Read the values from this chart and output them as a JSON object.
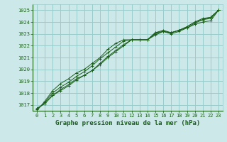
{
  "title": "Graphe pression niveau de la mer (hPa)",
  "background_color": "#cce8e8",
  "grid_color": "#99cccc",
  "line_color": "#1a5e1a",
  "axis_label_color": "#1a5e1a",
  "tick_color": "#1a5e1a",
  "ylim": [
    1016.5,
    1025.5
  ],
  "xlim": [
    -0.5,
    23.5
  ],
  "yticks": [
    1017,
    1018,
    1019,
    1020,
    1021,
    1022,
    1023,
    1024,
    1025
  ],
  "xticks": [
    0,
    1,
    2,
    3,
    4,
    5,
    6,
    7,
    8,
    9,
    10,
    11,
    12,
    13,
    14,
    15,
    16,
    17,
    18,
    19,
    20,
    21,
    22,
    23
  ],
  "series": [
    [
      1016.7,
      1017.1,
      1017.8,
      1018.2,
      1018.6,
      1019.1,
      1019.5,
      1019.9,
      1020.4,
      1021.0,
      1021.5,
      1022.0,
      1022.5,
      1022.5,
      1022.5,
      1023.0,
      1023.2,
      1023.0,
      1023.2,
      1023.5,
      1023.8,
      1024.0,
      1024.1,
      1025.0
    ],
    [
      1016.7,
      1017.1,
      1017.8,
      1018.3,
      1018.7,
      1019.2,
      1019.5,
      1019.9,
      1020.5,
      1021.1,
      1021.6,
      1022.1,
      1022.5,
      1022.5,
      1022.5,
      1023.1,
      1023.3,
      1023.1,
      1023.3,
      1023.6,
      1024.0,
      1024.2,
      1024.3,
      1025.0
    ],
    [
      1016.6,
      1017.2,
      1018.0,
      1018.5,
      1018.9,
      1019.4,
      1019.8,
      1020.3,
      1020.9,
      1021.4,
      1021.9,
      1022.4,
      1022.5,
      1022.5,
      1022.5,
      1023.1,
      1023.2,
      1023.1,
      1023.3,
      1023.6,
      1024.0,
      1024.3,
      1024.4,
      1025.0
    ],
    [
      1016.5,
      1017.3,
      1018.2,
      1018.8,
      1019.2,
      1019.7,
      1020.0,
      1020.5,
      1021.0,
      1021.7,
      1022.2,
      1022.5,
      1022.5,
      1022.5,
      1022.5,
      1022.9,
      1023.2,
      1023.1,
      1023.3,
      1023.5,
      1023.9,
      1024.2,
      1024.4,
      1025.0
    ]
  ]
}
